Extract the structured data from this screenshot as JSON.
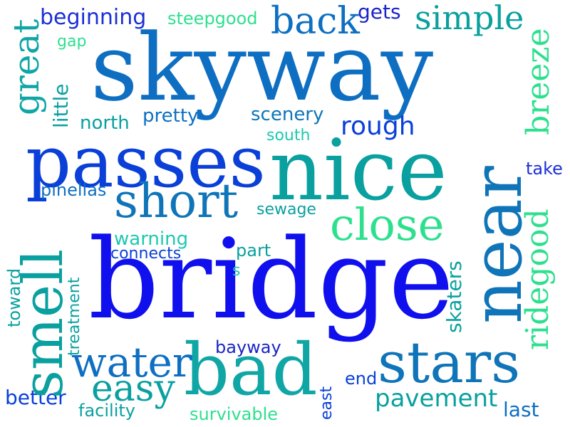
{
  "colors": {
    "background": "#ffffff",
    "royal": "#1b2fd6",
    "blue": "#0a3fd8",
    "bright_blue": "#1010ee",
    "sky": "#0e6fc2",
    "steel": "#0f75b8",
    "teal": "#0aa0a0",
    "teal_alt": "#11a6a6",
    "aqua": "#1ec9b0",
    "mint": "#2de08e",
    "navy": "#1a25c6"
  },
  "words": {
    "skyway": "skyway",
    "bridge": "bridge",
    "nice": "nice",
    "passes": "passes",
    "short": "short",
    "close": "close",
    "stars": "stars",
    "bad": "bad",
    "water": "water",
    "easy": "easy",
    "back": "back",
    "simple": "simple",
    "beginning": "beginning",
    "steepgood": "steepgood",
    "gets": "gets",
    "gap": "gap",
    "pretty": "pretty",
    "north": "north",
    "scenery": "scenery",
    "rough": "rough",
    "south": "south",
    "pinellas": "pinellas",
    "sewage": "sewage",
    "take": "take",
    "warning": "warning",
    "connects": "connects",
    "part": "part",
    "s": "s",
    "bayway": "bayway",
    "end": "end",
    "pavement": "pavement",
    "last": "last",
    "better": "better",
    "facility": "facility",
    "survivable": "survivable",
    "great": "great",
    "little": "little",
    "breeze": "breeze",
    "near": "near",
    "smell": "smell",
    "toward": "toward",
    "treatment": "treatment",
    "ridegood": "ridegood",
    "skaters": "skaters",
    "east": "east"
  }
}
